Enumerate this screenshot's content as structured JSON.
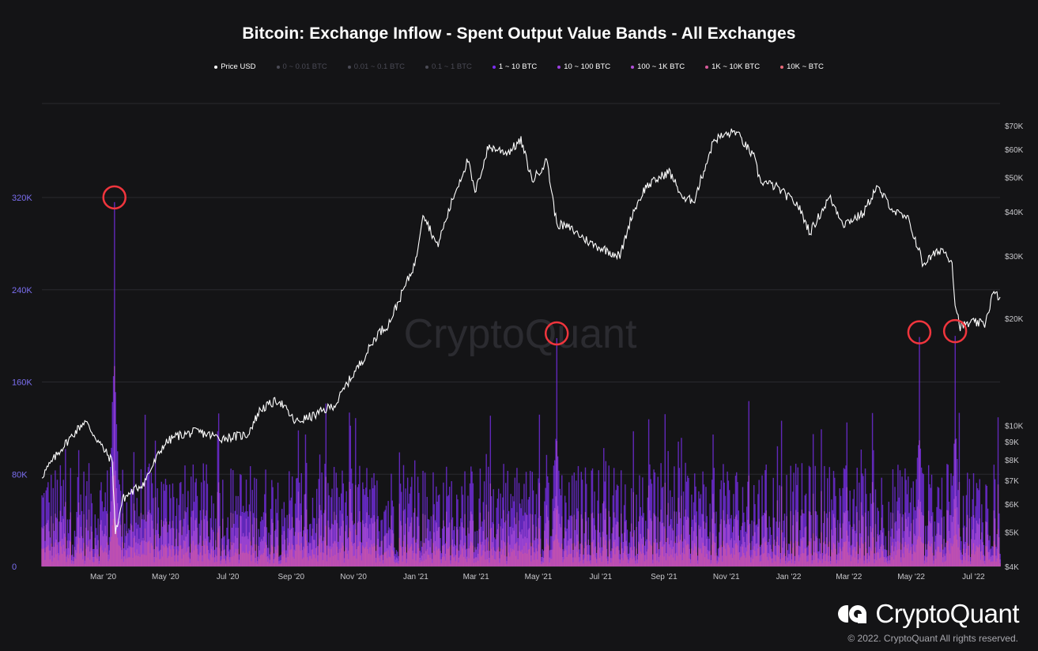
{
  "title": "Bitcoin: Exchange Inflow - Spent Output Value Bands - All Exchanges",
  "legend": [
    {
      "label": "Price USD",
      "color": "#ffffff",
      "text_color": "#ffffff"
    },
    {
      "label": "0 ~ 0.01 BTC",
      "color": "#4a4a55",
      "text_color": "#4a4a55"
    },
    {
      "label": "0.01 ~ 0.1 BTC",
      "color": "#4a4a55",
      "text_color": "#4a4a55"
    },
    {
      "label": "0.1 ~ 1 BTC",
      "color": "#4a4a55",
      "text_color": "#4a4a55"
    },
    {
      "label": "1 ~ 10 BTC",
      "color": "#7b2ff0",
      "text_color": "#ffffff"
    },
    {
      "label": "10 ~ 100 BTC",
      "color": "#9b3fe0",
      "text_color": "#ffffff"
    },
    {
      "label": "100 ~ 1K BTC",
      "color": "#b14fd8",
      "text_color": "#ffffff"
    },
    {
      "label": "1K ~ 10K BTC",
      "color": "#d85a9a",
      "text_color": "#ffffff"
    },
    {
      "label": "10K ~ BTC",
      "color": "#e86a7a",
      "text_color": "#ffffff"
    }
  ],
  "watermark": "CryptoQuant",
  "logo_text": "CryptoQuant",
  "copyright": "© 2022. CryptoQuant All rights reserved.",
  "chart_data": {
    "type": "bar",
    "left_axis": {
      "ticks": [
        0,
        80000,
        160000,
        240000,
        320000
      ],
      "tick_labels": [
        "0",
        "80K",
        "160K",
        "240K",
        "320K"
      ],
      "range": [
        0,
        322000
      ]
    },
    "right_axis": {
      "scale": "log",
      "ticks": [
        4000,
        5000,
        6000,
        7000,
        8000,
        9000,
        10000,
        20000,
        30000,
        40000,
        50000,
        60000,
        70000
      ],
      "tick_labels": [
        "$4K",
        "$5K",
        "$6K",
        "$7K",
        "$8K",
        "$9K",
        "$10K",
        "$20K",
        "$30K",
        "$40K",
        "$50K",
        "$60K",
        "$70K"
      ]
    },
    "x_ticks": [
      "Mar '20",
      "May '20",
      "Jul '20",
      "Sep '20",
      "Nov '20",
      "Jan '21",
      "Mar '21",
      "May '21",
      "Jul '21",
      "Sep '21",
      "Nov '21",
      "Jan '22",
      "Mar '22",
      "May '22",
      "Jul '22"
    ],
    "x_range": [
      "2020-01-01",
      "2022-07-27"
    ],
    "price_series": {
      "name": "Price USD",
      "x": [
        "2020-01-01",
        "2020-01-20",
        "2020-02-12",
        "2020-03-01",
        "2020-03-10",
        "2020-03-13",
        "2020-03-20",
        "2020-04-10",
        "2020-04-29",
        "2020-05-10",
        "2020-06-01",
        "2020-06-25",
        "2020-07-20",
        "2020-08-02",
        "2020-08-20",
        "2020-09-05",
        "2020-09-25",
        "2020-10-15",
        "2020-10-25",
        "2020-11-10",
        "2020-11-25",
        "2020-12-05",
        "2020-12-17",
        "2021-01-01",
        "2021-01-08",
        "2021-01-22",
        "2021-02-08",
        "2021-02-21",
        "2021-02-28",
        "2021-03-13",
        "2021-04-01",
        "2021-04-14",
        "2021-04-25",
        "2021-05-10",
        "2021-05-12",
        "2021-05-19",
        "2021-06-01",
        "2021-06-22",
        "2021-07-20",
        "2021-08-01",
        "2021-08-14",
        "2021-09-06",
        "2021-09-21",
        "2021-10-01",
        "2021-10-20",
        "2021-11-10",
        "2021-11-28",
        "2021-12-04",
        "2021-12-20",
        "2022-01-10",
        "2022-01-22",
        "2022-02-10",
        "2022-02-24",
        "2022-03-15",
        "2022-03-28",
        "2022-04-15",
        "2022-04-28",
        "2022-05-09",
        "2022-05-12",
        "2022-05-31",
        "2022-06-10",
        "2022-06-13",
        "2022-06-18",
        "2022-07-01",
        "2022-07-12",
        "2022-07-20",
        "2022-07-27"
      ],
      "y": [
        7200,
        8600,
        10300,
        8600,
        7900,
        4950,
        6200,
        6900,
        8800,
        9300,
        9600,
        9200,
        9400,
        11100,
        11800,
        10200,
        10700,
        11500,
        13000,
        15300,
        18200,
        19200,
        23000,
        29000,
        40000,
        32000,
        45000,
        56000,
        45000,
        61000,
        58800,
        63500,
        49000,
        56000,
        49500,
        37000,
        36000,
        32500,
        30000,
        39500,
        47000,
        52000,
        43000,
        43500,
        64000,
        67500,
        57000,
        49000,
        47000,
        41800,
        35000,
        44000,
        37000,
        39500,
        47000,
        40000,
        38000,
        31000,
        28500,
        31500,
        29000,
        22000,
        19000,
        19500,
        19300,
        23500,
        23000
      ]
    },
    "inflow_bands": {
      "unit": "BTC",
      "peaks": [
        {
          "date": "2020-03-12",
          "value": 316000
        },
        {
          "date": "2021-05-19",
          "value": 198000
        },
        {
          "date": "2022-05-09",
          "value": 199000
        },
        {
          "date": "2022-06-13",
          "value": 200000
        }
      ],
      "typical_range": [
        20000,
        90000
      ]
    }
  }
}
